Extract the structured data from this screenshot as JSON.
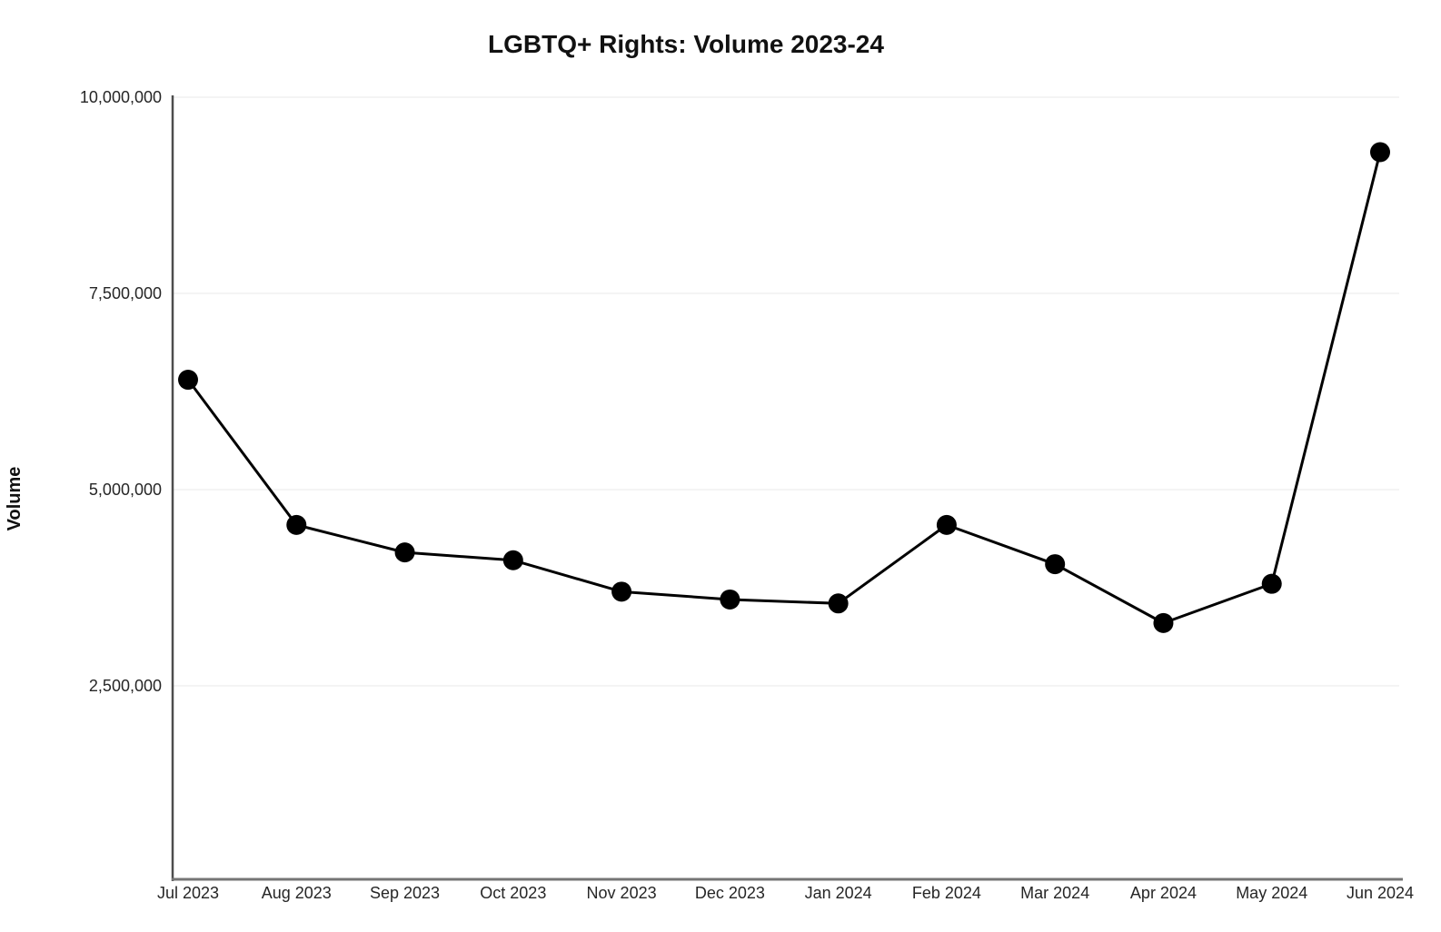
{
  "chart_data": {
    "type": "line",
    "title": "LGBTQ+ Rights: Volume 2023-24",
    "xlabel": "",
    "ylabel": "Volume",
    "categories": [
      "Jul 2023",
      "Aug 2023",
      "Sep 2023",
      "Oct 2023",
      "Nov 2023",
      "Dec 2023",
      "Jan 2024",
      "Feb 2024",
      "Mar 2024",
      "Apr 2024",
      "May 2024",
      "Jun 2024"
    ],
    "series": [
      {
        "name": "Volume",
        "values": [
          6400000,
          4550000,
          4200000,
          4100000,
          3700000,
          3600000,
          3550000,
          4550000,
          4050000,
          3300000,
          3800000,
          9300000
        ]
      }
    ],
    "ylim": [
      0,
      10000000
    ],
    "yticks": [
      2500000,
      5000000,
      7500000,
      10000000
    ],
    "ytick_labels": [
      "2,500,000",
      "5,000,000",
      "7,500,000",
      "10,000,000"
    ],
    "grid": true,
    "legend_position": "none",
    "colors": {
      "line": "#000000",
      "marker": "#000000",
      "y_axis": "#4d4d4d",
      "x_axis": "#757575",
      "gridline": "#f0f0f0",
      "title_text": "#111111",
      "tick_text": "#262626",
      "background": "#ffffff"
    }
  }
}
